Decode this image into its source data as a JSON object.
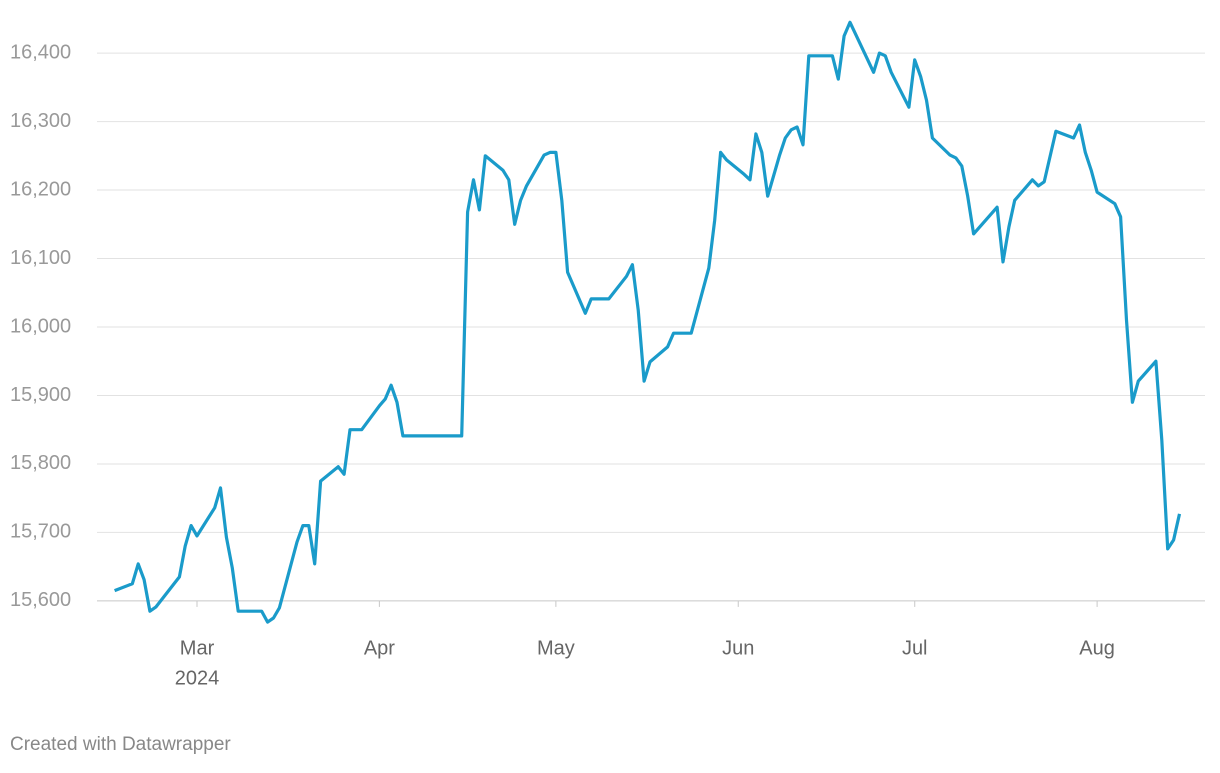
{
  "chart_data": {
    "type": "line",
    "x": [
      0,
      3,
      4,
      5,
      6,
      7,
      11,
      12,
      13,
      14,
      17,
      18,
      19,
      20,
      21,
      25,
      26,
      27,
      28,
      31,
      32,
      33,
      34,
      35,
      38,
      39,
      40,
      42,
      45,
      46,
      47,
      48,
      49,
      59,
      60,
      61,
      62,
      63,
      66,
      67,
      68,
      69,
      70,
      73,
      74,
      75,
      76,
      77,
      80,
      81,
      84,
      87,
      88,
      89,
      90,
      91,
      94,
      95,
      98,
      101,
      102,
      103,
      104,
      107,
      108,
      109,
      110,
      111,
      113,
      114,
      115,
      116,
      117,
      118,
      122,
      123,
      124,
      125,
      129,
      130,
      131,
      132,
      135,
      136,
      137,
      138,
      139,
      142,
      143,
      144,
      145,
      146,
      150,
      151,
      152,
      153,
      156,
      157,
      158,
      160,
      163,
      164,
      165,
      166,
      167,
      170,
      171,
      172,
      173,
      174,
      177,
      178,
      179,
      180,
      181
    ],
    "series": [
      {
        "color": "#1a9bca",
        "values": [
          15615,
          15625,
          15654,
          15631,
          15585,
          15591,
          15635,
          15680,
          15710,
          15695,
          15736,
          15765,
          15693,
          15648,
          15585,
          15585,
          15569,
          15575,
          15590,
          15686,
          15710,
          15710,
          15654,
          15775,
          15796,
          15785,
          15850,
          15850,
          15885,
          15895,
          15915,
          15890,
          15841,
          15841,
          16168,
          16215,
          16171,
          16250,
          16229,
          16215,
          16150,
          16185,
          16206,
          16251,
          16255,
          16255,
          16185,
          16080,
          16020,
          16041,
          16041,
          16074,
          16091,
          16025,
          15921,
          15949,
          15971,
          15991,
          15991,
          16086,
          16156,
          16255,
          16244,
          16223,
          16215,
          16282,
          16255,
          16191,
          16250,
          16276,
          16288,
          16292,
          16266,
          16396,
          16396,
          16362,
          16425,
          16445,
          16372,
          16400,
          16396,
          16372,
          16321,
          16390,
          16366,
          16331,
          16276,
          16251,
          16247,
          16235,
          16191,
          16136,
          16175,
          16095,
          16146,
          16185,
          16215,
          16206,
          16212,
          16286,
          16276,
          16295,
          16255,
          16229,
          16197,
          16180,
          16161,
          16010,
          15890,
          15921,
          15950,
          15835,
          15676,
          15689,
          15727
        ]
      }
    ],
    "xlim": [
      -3,
      185
    ],
    "xticks": [
      {
        "value": 14,
        "label": "Mar"
      },
      {
        "value": 45,
        "label": "Apr"
      },
      {
        "value": 75,
        "label": "May"
      },
      {
        "value": 106,
        "label": "Jun"
      },
      {
        "value": 136,
        "label": "Jul"
      },
      {
        "value": 167,
        "label": "Aug"
      }
    ],
    "x_year_label": "2024",
    "ylim": [
      15540,
      16460
    ],
    "yticks": [
      {
        "value": 15600,
        "label": "15,600"
      },
      {
        "value": 15700,
        "label": "15,700"
      },
      {
        "value": 15800,
        "label": "15,800"
      },
      {
        "value": 15900,
        "label": "15,900"
      },
      {
        "value": 16000,
        "label": "16,000"
      },
      {
        "value": 16100,
        "label": "16,100"
      },
      {
        "value": 16200,
        "label": "16,200"
      },
      {
        "value": 16300,
        "label": "16,300"
      },
      {
        "value": 16400,
        "label": "16,400"
      }
    ],
    "grid": true,
    "footer": "Created with Datawrapper"
  }
}
